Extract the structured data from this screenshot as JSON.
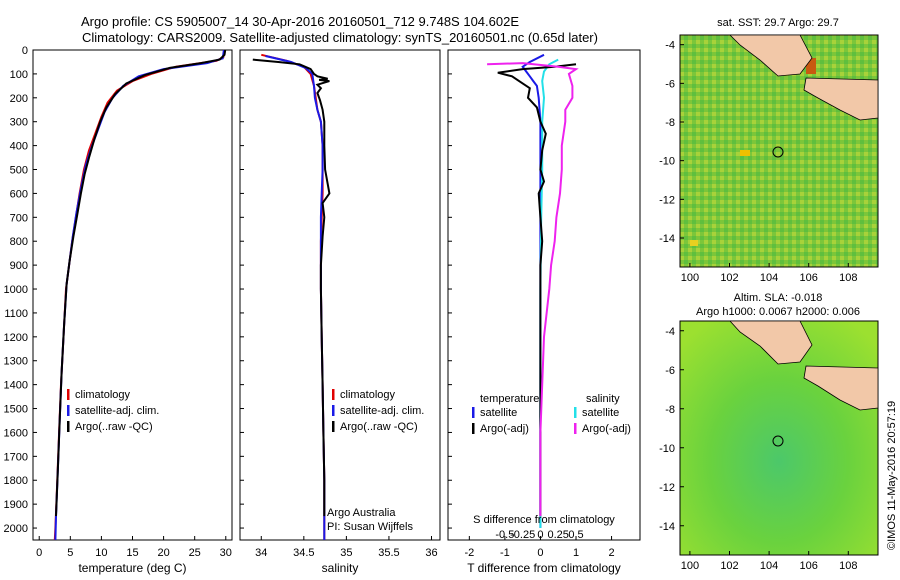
{
  "header": {
    "line1": "Argo profile: CS 5905007_14 30-Apr-2016 20160501_712 9.748S 104.602E",
    "line2": "Climatology: CARS2009. Satellite-adjusted climatology: synTS_20160501.nc (0.65d later)"
  },
  "side_stamp": "©IMOS 11-May-2016 20:57:19",
  "colors": {
    "climatology": "#e00000",
    "satellite": "#1a1ae6",
    "argo": "#000000",
    "sal_satellite": "#22e0e8",
    "sal_argo": "#ee22ee",
    "land": "#f2c8a8",
    "sst_field": "#7bc83a",
    "sla_field": "#78dc32"
  },
  "chart_data": [
    {
      "id": "temperature",
      "type": "line",
      "xlabel": "temperature (deg C)",
      "xlim": [
        -1,
        31
      ],
      "xticks": [
        "0",
        "5",
        "10",
        "15",
        "20",
        "25",
        "30"
      ],
      "ylim": [
        2050,
        0
      ],
      "yticks": [
        "0",
        "100",
        "200",
        "300",
        "400",
        "500",
        "600",
        "700",
        "800",
        "900",
        "1000",
        "1100",
        "1200",
        "1300",
        "1400",
        "1500",
        "1600",
        "1700",
        "1800",
        "1900",
        "2000"
      ],
      "legend": [
        "climatology",
        "satellite-adj. clim.",
        "Argo(..raw -QC)"
      ],
      "series": [
        {
          "name": "climatology",
          "color": "#e00000",
          "points": [
            [
              29.8,
              0
            ],
            [
              29.6,
              30
            ],
            [
              28.5,
              45
            ],
            [
              22,
              70
            ],
            [
              18,
              100
            ],
            [
              15,
              130
            ],
            [
              12.5,
              170
            ],
            [
              11,
              220
            ],
            [
              10,
              280
            ],
            [
              9,
              350
            ],
            [
              8,
              420
            ],
            [
              7.2,
              500
            ],
            [
              6.5,
              600
            ],
            [
              5.9,
              700
            ],
            [
              5.3,
              800
            ],
            [
              4.8,
              900
            ],
            [
              4.3,
              1000
            ],
            [
              3.9,
              1200
            ],
            [
              3.5,
              1400
            ],
            [
              3.2,
              1600
            ],
            [
              2.9,
              1800
            ],
            [
              2.6,
              2000
            ],
            [
              2.5,
              2050
            ]
          ]
        },
        {
          "name": "satellite-adj. clim.",
          "color": "#1a1ae6",
          "points": [
            [
              29.7,
              0
            ],
            [
              29.5,
              35
            ],
            [
              27,
              55
            ],
            [
              20,
              80
            ],
            [
              16,
              110
            ],
            [
              13.5,
              150
            ],
            [
              11.8,
              200
            ],
            [
              10.5,
              260
            ],
            [
              9.5,
              330
            ],
            [
              8.5,
              400
            ],
            [
              7.5,
              480
            ],
            [
              6.7,
              580
            ],
            [
              6,
              680
            ],
            [
              5.4,
              780
            ],
            [
              4.9,
              880
            ],
            [
              4.4,
              980
            ],
            [
              4,
              1150
            ],
            [
              3.6,
              1350
            ],
            [
              3.3,
              1550
            ],
            [
              3,
              1750
            ],
            [
              2.7,
              1950
            ],
            [
              2.6,
              2050
            ]
          ]
        },
        {
          "name": "Argo(..raw -QC)",
          "color": "#000000",
          "points": [
            [
              29.9,
              0
            ],
            [
              29.8,
              20
            ],
            [
              29,
              40
            ],
            [
              26,
              55
            ],
            [
              21,
              75
            ],
            [
              17,
              105
            ],
            [
              14,
              140
            ],
            [
              12.2,
              185
            ],
            [
              10.8,
              240
            ],
            [
              9.8,
              300
            ],
            [
              8.9,
              370
            ],
            [
              8,
              450
            ],
            [
              7.3,
              520
            ],
            [
              6.7,
              600
            ],
            [
              6.1,
              690
            ],
            [
              5.5,
              780
            ],
            [
              4.9,
              880
            ],
            [
              4.4,
              980
            ],
            [
              4,
              1150
            ],
            [
              3.6,
              1350
            ],
            [
              3.3,
              1550
            ],
            [
              3,
              1750
            ],
            [
              2.7,
              1950
            ]
          ]
        }
      ]
    },
    {
      "id": "salinity",
      "type": "line",
      "xlabel": "salinity",
      "xlim": [
        33.75,
        36.1
      ],
      "xticks": [
        "34",
        "34.5",
        "35",
        "35.5",
        "36"
      ],
      "ylim": [
        2050,
        0
      ],
      "legend": [
        "climatology",
        "satellite-adj. clim.",
        "Argo(..raw -QC)"
      ],
      "annotation": [
        "Argo Australia",
        "PI: Susan Wijffels"
      ],
      "series": [
        {
          "name": "climatology",
          "color": "#e00000",
          "points": [
            [
              34.0,
              20
            ],
            [
              34.3,
              45
            ],
            [
              34.5,
              70
            ],
            [
              34.58,
              100
            ],
            [
              34.62,
              150
            ],
            [
              34.64,
              200
            ],
            [
              34.66,
              250
            ],
            [
              34.7,
              300
            ],
            [
              34.72,
              400
            ],
            [
              34.72,
              500
            ],
            [
              34.72,
              600
            ],
            [
              34.71,
              700
            ],
            [
              34.7,
              800
            ],
            [
              34.7,
              900
            ],
            [
              34.7,
              1000
            ],
            [
              34.71,
              1200
            ],
            [
              34.72,
              1400
            ],
            [
              34.73,
              1600
            ],
            [
              34.74,
              1800
            ],
            [
              34.74,
              2000
            ],
            [
              34.74,
              2050
            ]
          ]
        },
        {
          "name": "satellite-adj. clim.",
          "color": "#1a1ae6",
          "points": [
            [
              34.05,
              25
            ],
            [
              34.35,
              50
            ],
            [
              34.52,
              75
            ],
            [
              34.6,
              100
            ],
            [
              34.62,
              150
            ],
            [
              34.63,
              200
            ],
            [
              34.66,
              250
            ],
            [
              34.7,
              300
            ],
            [
              34.72,
              400
            ],
            [
              34.72,
              500
            ],
            [
              34.71,
              600
            ],
            [
              34.7,
              700
            ],
            [
              34.7,
              800
            ],
            [
              34.7,
              900
            ],
            [
              34.7,
              1000
            ],
            [
              34.71,
              1200
            ],
            [
              34.72,
              1400
            ],
            [
              34.73,
              1600
            ],
            [
              34.74,
              1800
            ],
            [
              34.74,
              2050
            ]
          ]
        },
        {
          "name": "Argo(..raw -QC)",
          "color": "#000000",
          "points": [
            [
              33.9,
              40
            ],
            [
              34.2,
              50
            ],
            [
              34.45,
              60
            ],
            [
              34.58,
              80
            ],
            [
              34.62,
              100
            ],
            [
              34.66,
              110
            ],
            [
              34.78,
              120
            ],
            [
              34.68,
              125
            ],
            [
              34.8,
              130
            ],
            [
              34.66,
              145
            ],
            [
              34.7,
              160
            ],
            [
              34.66,
              180
            ],
            [
              34.69,
              210
            ],
            [
              34.72,
              250
            ],
            [
              34.74,
              300
            ],
            [
              34.74,
              400
            ],
            [
              34.75,
              500
            ],
            [
              34.78,
              560
            ],
            [
              34.8,
              600
            ],
            [
              34.72,
              640
            ],
            [
              34.74,
              700
            ],
            [
              34.72,
              780
            ],
            [
              34.7,
              900
            ],
            [
              34.7,
              1000
            ],
            [
              34.71,
              1200
            ],
            [
              34.72,
              1400
            ],
            [
              34.73,
              1600
            ],
            [
              34.74,
              1800
            ],
            [
              34.74,
              1950
            ]
          ]
        }
      ]
    },
    {
      "id": "differences",
      "type": "line",
      "xlabel": "T difference from climatology",
      "xlabel_top": "S difference from climatology",
      "xlim": [
        -2.6,
        2.8
      ],
      "xticks": [
        "-2",
        "-1",
        "0",
        "1",
        "2"
      ],
      "sticks": [
        "-0.5",
        "-0.25",
        "0",
        "0.25",
        "0.5"
      ],
      "ylim": [
        2050,
        0
      ],
      "legend": {
        "temperature": "temperature",
        "salinity": "salinity",
        "satellite": "satellite",
        "argo": "Argo(-adj)"
      },
      "series": [
        {
          "name": "satellite",
          "color": "#1a1ae6",
          "points": [
            [
              0.1,
              20
            ],
            [
              -0.3,
              50
            ],
            [
              -0.5,
              70
            ],
            [
              -0.4,
              90
            ],
            [
              -0.3,
              110
            ],
            [
              -0.2,
              130
            ],
            [
              -0.1,
              150
            ],
            [
              -0.05,
              200
            ],
            [
              0,
              300
            ],
            [
              0,
              500
            ],
            [
              0,
              800
            ],
            [
              0,
              1000
            ],
            [
              0,
              1500
            ],
            [
              0,
              2000
            ]
          ]
        },
        {
          "name": "satellite",
          "color": "#22e0e8",
          "points": [
            [
              0.5,
              40
            ],
            [
              0.25,
              60
            ],
            [
              0.1,
              90
            ],
            [
              0.05,
              130
            ],
            [
              0.1,
              200
            ],
            [
              0.05,
              300
            ],
            [
              0.05,
              500
            ],
            [
              0.02,
              700
            ],
            [
              0,
              1000
            ],
            [
              0,
              1500
            ],
            [
              0,
              2000
            ]
          ]
        },
        {
          "name": "Argo(-adj)",
          "color": "#000000",
          "points": [
            [
              1.0,
              60
            ],
            [
              0.4,
              70
            ],
            [
              -0.5,
              80
            ],
            [
              -1.2,
              95
            ],
            [
              -0.8,
              110
            ],
            [
              -0.6,
              130
            ],
            [
              -0.3,
              160
            ],
            [
              -0.35,
              200
            ],
            [
              -0.1,
              240
            ],
            [
              0,
              300
            ],
            [
              0.15,
              350
            ],
            [
              0.05,
              420
            ],
            [
              0,
              500
            ],
            [
              0.1,
              550
            ],
            [
              -0.05,
              600
            ],
            [
              0,
              700
            ],
            [
              0.05,
              800
            ],
            [
              0,
              900
            ],
            [
              0,
              1000
            ],
            [
              0,
              1200
            ],
            [
              0,
              1500
            ],
            [
              0,
              1800
            ],
            [
              0,
              1950
            ]
          ]
        },
        {
          "name": "Argo(-adj)",
          "color": "#ee22ee",
          "points": [
            [
              -1.5,
              60
            ],
            [
              -0.5,
              55
            ],
            [
              0.5,
              70
            ],
            [
              1.0,
              80
            ],
            [
              0.8,
              100
            ],
            [
              0.9,
              150
            ],
            [
              0.9,
              200
            ],
            [
              0.7,
              250
            ],
            [
              0.7,
              300
            ],
            [
              0.6,
              400
            ],
            [
              0.6,
              500
            ],
            [
              0.55,
              600
            ],
            [
              0.45,
              700
            ],
            [
              0.4,
              800
            ],
            [
              0.3,
              900
            ],
            [
              0.25,
              1000
            ],
            [
              0.1,
              1200
            ],
            [
              0.05,
              1400
            ],
            [
              0,
              1600
            ],
            [
              0,
              1800
            ],
            [
              0,
              1950
            ]
          ]
        }
      ]
    },
    {
      "id": "sst_map",
      "type": "heatmap",
      "title": "sat. SST: 29.7  Argo: 29.7",
      "xticks": [
        "100",
        "102",
        "104",
        "106",
        "108"
      ],
      "yticks": [
        "-4",
        "-6",
        "-8",
        "-10",
        "-12",
        "-14"
      ],
      "xlim": [
        99.5,
        109.5
      ],
      "ylim": [
        -15.5,
        -3.5
      ],
      "argo_position": [
        104.6,
        -9.75
      ]
    },
    {
      "id": "sla_map",
      "type": "heatmap",
      "title": "Altim. SLA: -0.018",
      "subtitle": "Argo h1000: 0.0067  h2000: 0.006",
      "xticks": [
        "100",
        "102",
        "104",
        "106",
        "108"
      ],
      "yticks": [
        "-4",
        "-6",
        "-8",
        "-10",
        "-12",
        "-14"
      ],
      "xlim": [
        99.5,
        109.5
      ],
      "ylim": [
        -15.5,
        -3.5
      ],
      "argo_position": [
        104.6,
        -9.75
      ]
    }
  ]
}
